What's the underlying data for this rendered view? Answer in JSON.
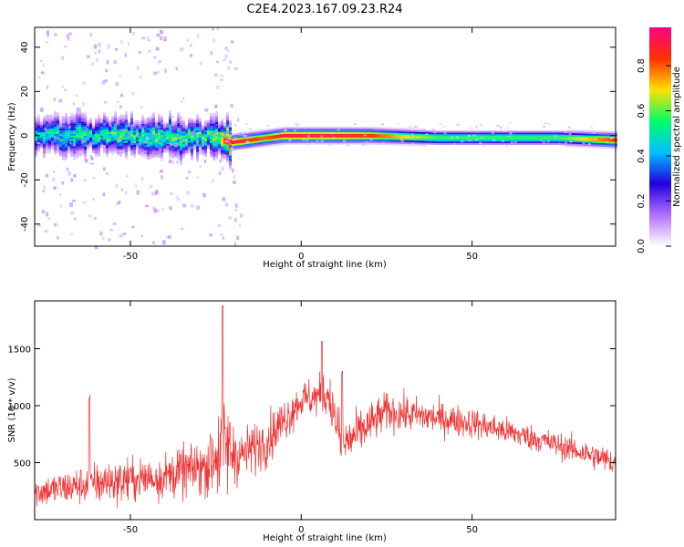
{
  "title": "C2E4.2023.167.09.23.R24",
  "chart_data": [
    {
      "type": "heatmap",
      "xlabel": "Height of straight line (km)",
      "ylabel": "Frequency (Hz)",
      "xlim": [
        -78,
        92
      ],
      "ylim": [
        -50,
        49
      ],
      "xticks": [
        -50,
        0,
        50
      ],
      "yticks": [
        -40,
        -20,
        0,
        20,
        40
      ],
      "colorbar": {
        "label": "Normalized spectral amplitude",
        "range": [
          0,
          0.97
        ],
        "ticks": [
          0.0,
          0.2,
          0.4,
          0.6,
          0.8
        ],
        "colormap": [
          "#ffffff",
          "#b070ff",
          "#2200dd",
          "#00c0ff",
          "#00ff66",
          "#ffe000",
          "#ff3000",
          "#ff0088"
        ]
      },
      "ridge": [
        {
          "x": -78,
          "freq": 0,
          "peak": 0.45
        },
        {
          "x": -55,
          "freq": 0,
          "peak": 0.55
        },
        {
          "x": -25,
          "freq": -1,
          "peak": 0.55
        },
        {
          "x": -20,
          "freq": -3,
          "peak": 0.95
        },
        {
          "x": -10,
          "freq": -1,
          "peak": 0.85
        },
        {
          "x": -5,
          "freq": 0,
          "peak": 0.95
        },
        {
          "x": 7,
          "freq": 0,
          "peak": 0.95
        },
        {
          "x": 20,
          "freq": 0,
          "peak": 0.9
        },
        {
          "x": 40,
          "freq": -1,
          "peak": 0.6
        },
        {
          "x": 75,
          "freq": -1,
          "peak": 0.6
        },
        {
          "x": 92,
          "freq": -2,
          "peak": 0.9
        }
      ]
    },
    {
      "type": "line",
      "xlabel": "Height of straight line (km)",
      "ylabel": "SNR (10 * v/v)",
      "xlim": [
        -78,
        92
      ],
      "ylim": [
        0,
        1920
      ],
      "xticks": [
        -50,
        0,
        50
      ],
      "yticks": [
        500,
        1000,
        1500
      ],
      "color": "#ee3333",
      "envelope": [
        {
          "x": -78,
          "mean": 240,
          "spread": 120
        },
        {
          "x": -60,
          "mean": 320,
          "spread": 160
        },
        {
          "x": -40,
          "mean": 380,
          "spread": 180
        },
        {
          "x": -28,
          "mean": 470,
          "spread": 220
        },
        {
          "x": -23,
          "mean": 650,
          "spread": 450
        },
        {
          "x": -18,
          "mean": 560,
          "spread": 200
        },
        {
          "x": -10,
          "mean": 700,
          "spread": 200
        },
        {
          "x": 0,
          "mean": 1050,
          "spread": 150
        },
        {
          "x": 8,
          "mean": 1100,
          "spread": 170
        },
        {
          "x": 12,
          "mean": 650,
          "spread": 200
        },
        {
          "x": 25,
          "mean": 950,
          "spread": 150
        },
        {
          "x": 50,
          "mean": 850,
          "spread": 120
        },
        {
          "x": 70,
          "mean": 700,
          "spread": 100
        },
        {
          "x": 92,
          "mean": 500,
          "spread": 110
        }
      ],
      "peaks": [
        {
          "x": -23,
          "y": 1920
        },
        {
          "x": -62,
          "y": 1100
        },
        {
          "x": 6,
          "y": 1580
        },
        {
          "x": 12,
          "y": 1310
        }
      ]
    }
  ]
}
